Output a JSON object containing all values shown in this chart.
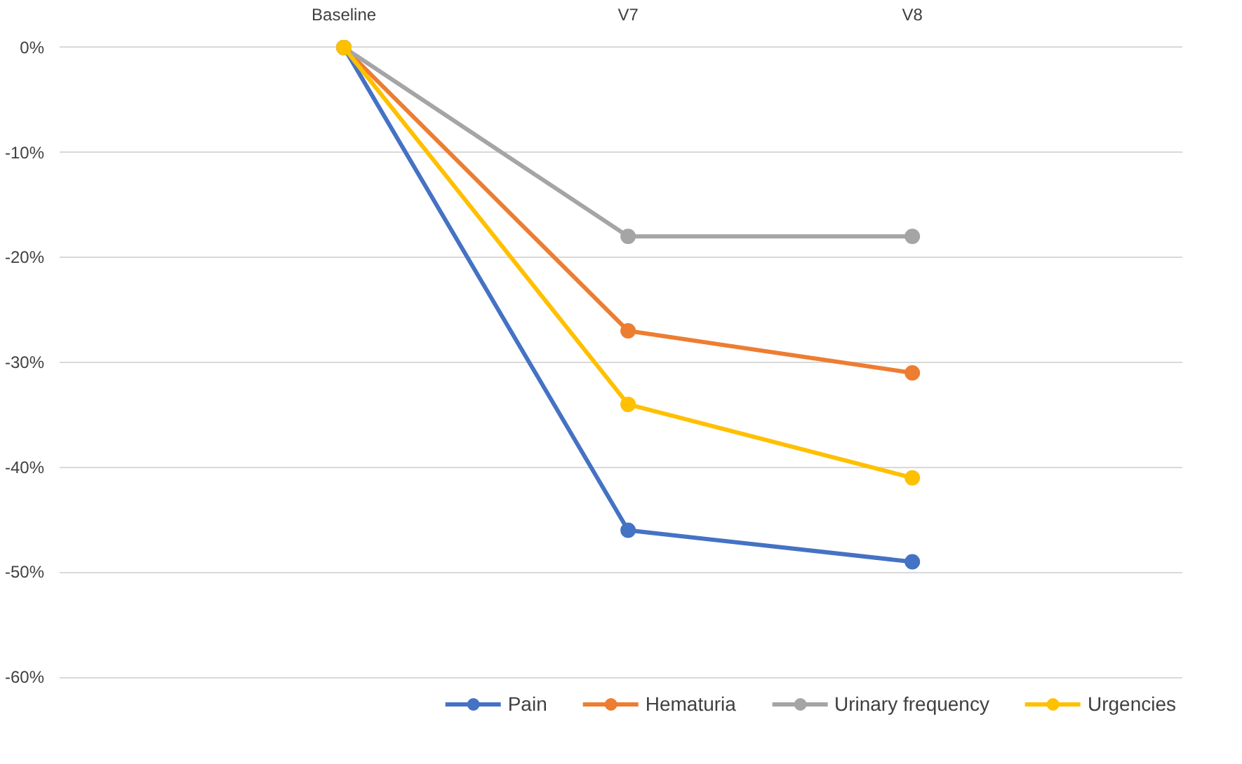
{
  "chart_data": {
    "type": "line",
    "categories": [
      "Baseline",
      "V7",
      "V8"
    ],
    "series": [
      {
        "name": "Pain",
        "color": "#4472c4",
        "values": [
          0,
          -46,
          -49
        ]
      },
      {
        "name": "Hematuria",
        "color": "#ed7d31",
        "values": [
          0,
          -27,
          -31
        ]
      },
      {
        "name": "Urinary frequency",
        "color": "#a5a5a5",
        "values": [
          0,
          -18,
          -18
        ]
      },
      {
        "name": "Urgencies",
        "color": "#ffc000",
        "values": [
          0,
          -34,
          -41
        ]
      }
    ],
    "ylim": [
      -60,
      0
    ],
    "yticks": [
      {
        "value": 0,
        "label": "0%"
      },
      {
        "value": -10,
        "label": "-10%"
      },
      {
        "value": -20,
        "label": "-20%"
      },
      {
        "value": -30,
        "label": "-30%"
      },
      {
        "value": -40,
        "label": "-40%"
      },
      {
        "value": -50,
        "label": "-50%"
      },
      {
        "value": -60,
        "label": "-60%"
      }
    ],
    "grid": "y",
    "legend": "bottom",
    "marker": "circle",
    "line_style": "solid"
  }
}
